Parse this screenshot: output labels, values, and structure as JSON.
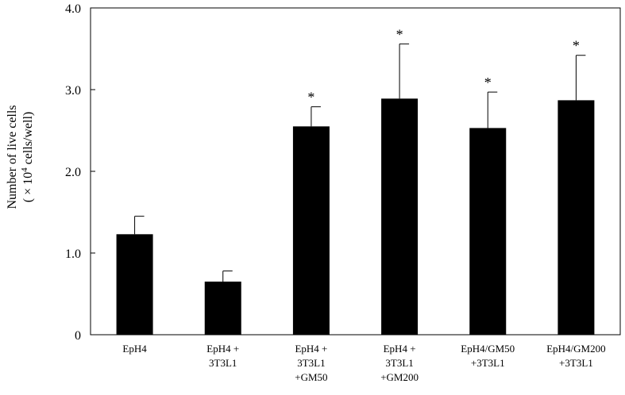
{
  "chart_data": {
    "type": "bar",
    "categories": [
      [
        "EpH4"
      ],
      [
        "EpH4 +",
        "3T3L1"
      ],
      [
        "EpH4 +",
        "3T3L1",
        "+GM50"
      ],
      [
        "EpH4 +",
        "3T3L1",
        "+GM200"
      ],
      [
        "EpH4/GM50",
        "+3T3L1"
      ],
      [
        "EpH4/GM200",
        "+3T3L1"
      ]
    ],
    "values": [
      1.23,
      0.65,
      2.55,
      2.89,
      2.53,
      2.87
    ],
    "errors": [
      0.22,
      0.13,
      0.24,
      0.67,
      0.44,
      0.55
    ],
    "significance": [
      "",
      "",
      "*",
      "*",
      "*",
      "*"
    ],
    "ylabel_line1": "Number of live cells",
    "ylabel_line2_prefix": "( × 10",
    "ylabel_sup": "4",
    "ylabel_line2_suffix": " cells/well)",
    "ylim": [
      0,
      4.0
    ],
    "yticks": [
      0,
      1.0,
      2.0,
      3.0,
      4.0
    ],
    "ytick_labels": [
      "0",
      "1.0",
      "2.0",
      "3.0",
      "4.0"
    ],
    "grid": false,
    "bar_color": "#000000"
  }
}
